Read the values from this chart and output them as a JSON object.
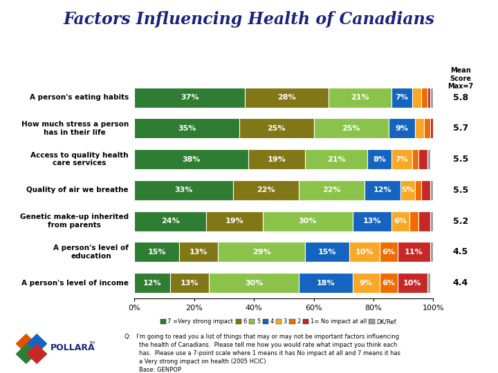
{
  "title": "Factors Influencing Health of Canadians",
  "title_color": "#1a237e",
  "categories": [
    "A person's eating habits",
    "How much stress a person\nhas in their life",
    "Access to quality health\ncare services",
    "Quality of air we breathe",
    "Genetic make-up inherited\nfrom parents",
    "A person's level of\neducation",
    "A person's level of income"
  ],
  "mean_scores": [
    "5.8",
    "5.7",
    "5.5",
    "5.5",
    "5.2",
    "4.5",
    "4.4"
  ],
  "segments": [
    [
      37,
      28,
      21,
      7,
      3,
      2,
      1,
      1
    ],
    [
      35,
      25,
      25,
      9,
      3,
      2,
      1,
      0
    ],
    [
      38,
      19,
      21,
      8,
      7,
      2,
      3,
      1
    ],
    [
      33,
      22,
      22,
      12,
      5,
      2,
      3,
      1
    ],
    [
      24,
      19,
      30,
      13,
      6,
      3,
      4,
      2
    ],
    [
      15,
      13,
      29,
      15,
      10,
      6,
      11,
      1
    ],
    [
      12,
      13,
      30,
      18,
      9,
      6,
      10,
      1
    ]
  ],
  "segment_labels": [
    [
      "37%",
      "28%",
      "21%",
      "7%",
      "3%",
      "2%",
      "1%",
      "1%"
    ],
    [
      "35%",
      "25%",
      "25%",
      "9%",
      "3%",
      "2%",
      "1%",
      ""
    ],
    [
      "38%",
      "19%",
      "21%",
      "8%",
      "7%",
      "2%",
      "3%",
      "1%"
    ],
    [
      "33%",
      "22%",
      "22%",
      "12%",
      "5%",
      "2%",
      "3%",
      "1%"
    ],
    [
      "24%",
      "19%",
      "30%",
      "13%",
      "6%",
      "3%",
      "4%",
      "2%"
    ],
    [
      "15%",
      "13%",
      "29%",
      "15%",
      "10%",
      "6%",
      "11%",
      "1%"
    ],
    [
      "12%",
      "13%",
      "30%",
      "18%",
      "9%",
      "6%",
      "10%",
      "1%"
    ]
  ],
  "colors": [
    "#2e7d32",
    "#827717",
    "#8bc34a",
    "#1565c0",
    "#f9a825",
    "#ef6c00",
    "#c62828",
    "#9e9e9e"
  ],
  "legend_labels": [
    "7 =Very strong impact",
    "6",
    "5",
    "4",
    "3",
    "2",
    "1= No impact at all",
    "DK/Ref."
  ],
  "background_color": "#ffffff",
  "mean_score_header": "Mean\nScore\nMax=7",
  "bottom_text": "Q:   I'm going to read you a list of things that may or may not be important factors influencing\n        the health of Canadians.  Please tell me how you would rate what impact you think each\n        has.  Please use a 7-point scale where 1 means it has No impact at all and 7 means it has\n        a Very strong impact on health (2005 HCIC)\n        Base: GENPOP"
}
